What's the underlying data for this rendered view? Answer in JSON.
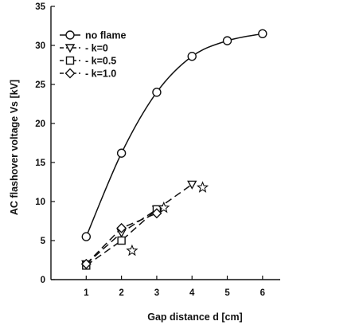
{
  "chart_data": {
    "type": "line",
    "title": "",
    "xlabel": "Gap distance d  [cm]",
    "ylabel": "AC flashover voltage Vs [kV]",
    "xlim": [
      0,
      6.5
    ],
    "ylim": [
      0,
      35
    ],
    "xticks": [
      1,
      2,
      3,
      4,
      5,
      6
    ],
    "yticks": [
      0,
      5,
      10,
      15,
      20,
      25,
      30,
      35
    ],
    "grid": false,
    "legend_position": "top-left",
    "series": [
      {
        "name": "no flame",
        "marker": "circle",
        "line": "solid",
        "x": [
          1,
          2,
          3,
          4,
          5,
          6
        ],
        "y": [
          5.5,
          16.2,
          24.0,
          28.6,
          30.6,
          31.5
        ]
      },
      {
        "name": "k=0",
        "marker": "triangle-down",
        "line": "dashed",
        "x": [
          1,
          2,
          3,
          4
        ],
        "y": [
          2.0,
          6.0,
          9.0,
          12.2
        ]
      },
      {
        "name": "k=0.5",
        "marker": "square",
        "line": "dashed",
        "x": [
          1,
          2,
          3
        ],
        "y": [
          1.8,
          5.0,
          9.0
        ]
      },
      {
        "name": "k=1.0",
        "marker": "diamond",
        "line": "dashed",
        "x": [
          1,
          2,
          3
        ],
        "y": [
          2.0,
          6.6,
          8.5
        ]
      }
    ],
    "unlabeled_points": {
      "marker": "star",
      "x": [
        2.3,
        3.2,
        4.3
      ],
      "y": [
        3.7,
        9.2,
        11.8
      ]
    }
  }
}
